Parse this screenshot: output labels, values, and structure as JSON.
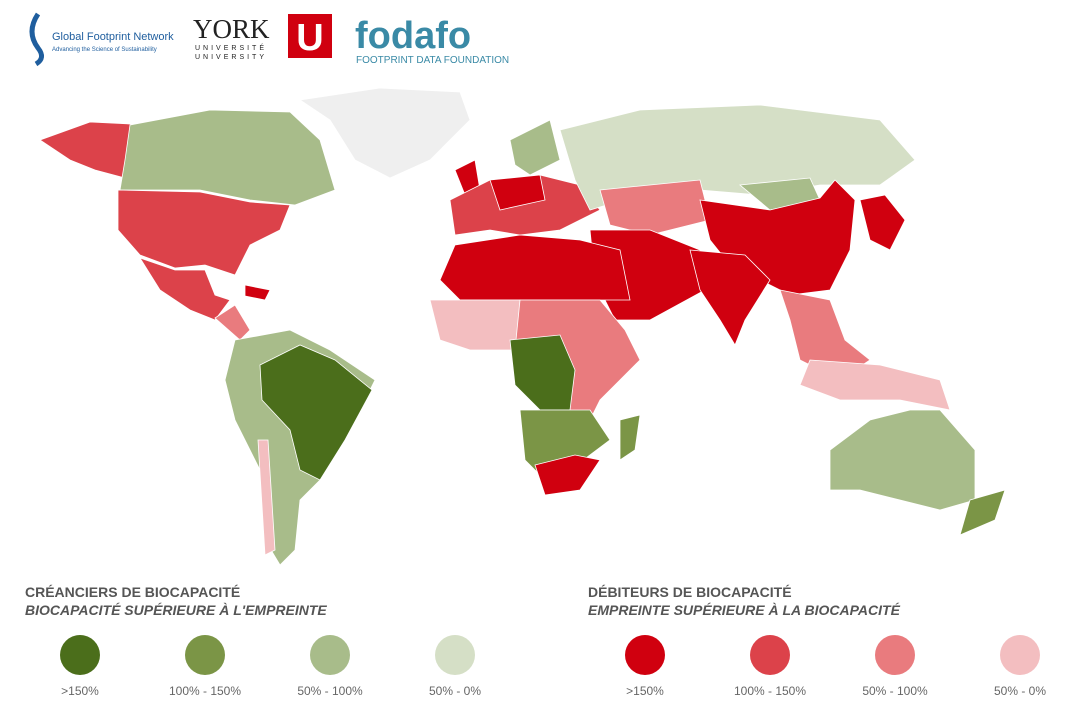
{
  "logos": {
    "gfn": {
      "name": "Global Footprint Network",
      "tagline": "Advancing the Science of Sustainability"
    },
    "york": {
      "name": "YORK",
      "mark": "U",
      "line1": "UNIVERSITÉ",
      "line2": "UNIVERSITY"
    },
    "fodafo": {
      "name": "fodafo",
      "tagline": "FOOTPRINT DATA FOUNDATION"
    }
  },
  "legend": [
    {
      "title": "CRÉANCIERS DE BIOCAPACITÉ",
      "subtitle": "BIOCAPACITÉ SUPÉRIEURE À L'EMPREINTE",
      "items": [
        {
          "label": ">150%",
          "color": "#4b6e1b"
        },
        {
          "label": "100% - 150%",
          "color": "#7b9546"
        },
        {
          "label": "50% - 100%",
          "color": "#a8bc8a"
        },
        {
          "label": "50% - 0%",
          "color": "#d5dfc6"
        }
      ]
    },
    {
      "title": "DÉBITEURS DE BIOCAPACITÉ",
      "subtitle": "EMPREINTE SUPÉRIEURE À LA BIOCAPACITÉ",
      "items": [
        {
          "label": ">150%",
          "color": "#d0000f"
        },
        {
          "label": "100% - 150%",
          "color": "#dc424a"
        },
        {
          "label": "50% - 100%",
          "color": "#e97b7e"
        },
        {
          "label": "50% - 0%",
          "color": "#f3bec0"
        }
      ]
    }
  ]
}
